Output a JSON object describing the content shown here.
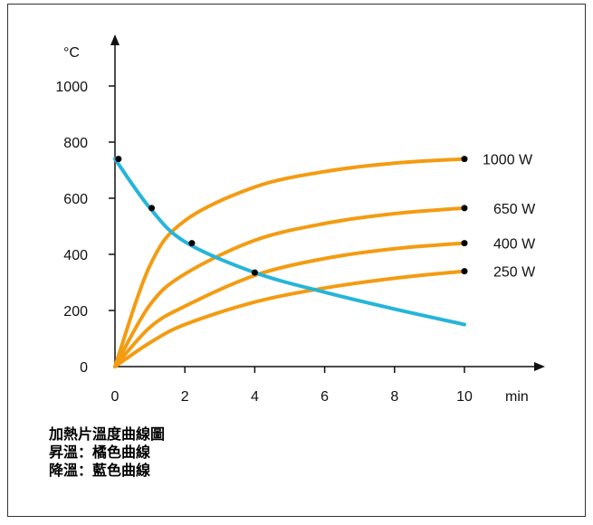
{
  "chart_data": {
    "type": "line",
    "ylabel": "°C",
    "xlabel": "min",
    "xlim": [
      0,
      10
    ],
    "ylim": [
      0,
      1000
    ],
    "xticks": [
      "0",
      "2",
      "4",
      "6",
      "8",
      "10"
    ],
    "yticks": [
      "0",
      "200",
      "400",
      "600",
      "800",
      "1000"
    ],
    "series": [
      {
        "name": "1000 W",
        "color": "#f39c12",
        "x": [
          0,
          1,
          2,
          4,
          6,
          8,
          10
        ],
        "y": [
          0,
          360,
          520,
          640,
          695,
          725,
          740
        ],
        "end_marker": [
          10,
          740
        ]
      },
      {
        "name": "650 W",
        "color": "#f39c12",
        "x": [
          0,
          1,
          2,
          4,
          6,
          8,
          10
        ],
        "y": [
          0,
          220,
          330,
          450,
          510,
          545,
          565
        ],
        "end_marker": [
          10,
          565
        ]
      },
      {
        "name": "400 W",
        "color": "#f39c12",
        "x": [
          0,
          1,
          2,
          4,
          6,
          8,
          10
        ],
        "y": [
          0,
          140,
          215,
          325,
          385,
          420,
          440
        ],
        "end_marker": [
          10,
          440
        ]
      },
      {
        "name": "250 W",
        "color": "#f39c12",
        "x": [
          0,
          1,
          2,
          4,
          6,
          8,
          10
        ],
        "y": [
          0,
          85,
          150,
          230,
          280,
          315,
          340
        ],
        "end_marker": [
          10,
          340
        ]
      },
      {
        "name": "",
        "color": "#26b5d9",
        "x": [
          0,
          1,
          2,
          4,
          6,
          8,
          10
        ],
        "y": [
          740,
          565,
          445,
          335,
          265,
          205,
          150
        ],
        "markers": [
          [
            0.1,
            740
          ],
          [
            1.05,
            565
          ],
          [
            2.2,
            440
          ],
          [
            4.0,
            335
          ]
        ]
      }
    ]
  },
  "caption": {
    "line1": "加熱片溫度曲線圖",
    "line2": "昇溫：橘色曲線",
    "line3": "降溫：藍色曲線"
  }
}
